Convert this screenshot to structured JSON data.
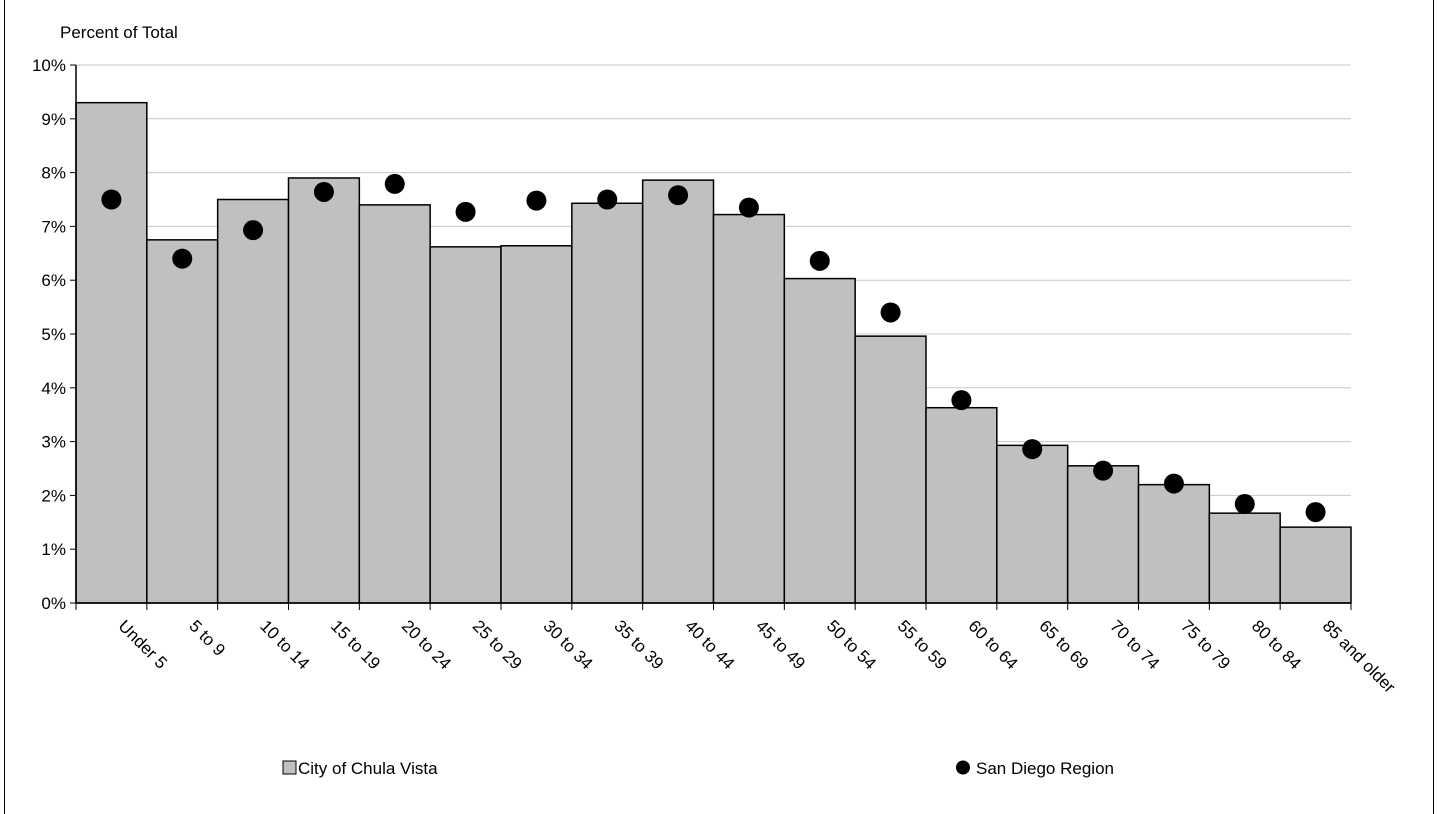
{
  "chart_data": {
    "type": "bar",
    "ylabel": "Percent of Total",
    "ylim": [
      0,
      10
    ],
    "yticks": [
      "0%",
      "1%",
      "2%",
      "3%",
      "4%",
      "5%",
      "6%",
      "7%",
      "8%",
      "9%",
      "10%"
    ],
    "grid": true,
    "legend_position": "bottom",
    "categories": [
      "Under 5",
      "5 to 9",
      "10 to 14",
      "15 to 19",
      "20 to 24",
      "25 to 29",
      "30 to 34",
      "35 to 39",
      "40 to 44",
      "45 to 49",
      "50 to 54",
      "55 to 59",
      "60 to 64",
      "65 to 69",
      "70 to 74",
      "75 to 79",
      "80 to 84",
      "85 and older"
    ],
    "series": [
      {
        "name": "City of Chula Vista",
        "kind": "bar",
        "color": "#c0c0c0",
        "values": [
          9.3,
          6.75,
          7.5,
          7.9,
          7.4,
          6.62,
          6.64,
          7.43,
          7.86,
          7.22,
          6.03,
          4.96,
          3.63,
          2.93,
          2.55,
          2.2,
          1.67,
          1.41
        ]
      },
      {
        "name": "San Diego Region",
        "kind": "scatter",
        "color": "#000000",
        "values": [
          7.5,
          6.4,
          6.93,
          7.64,
          7.79,
          7.27,
          7.48,
          7.5,
          7.58,
          7.35,
          6.36,
          5.4,
          3.77,
          2.86,
          2.46,
          2.22,
          1.84,
          1.69
        ]
      }
    ]
  }
}
